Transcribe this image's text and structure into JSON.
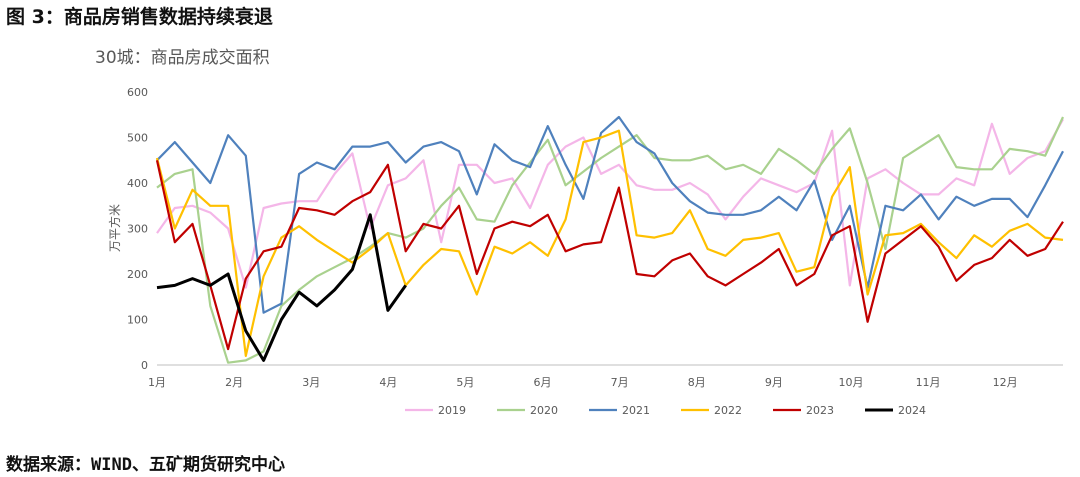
{
  "figure_title": "图 3：商品房销售数据持续衰退",
  "source": "数据来源：WIND、五矿期货研究中心",
  "chart_data": {
    "type": "line",
    "title": "30城：商品房成交面积",
    "ylabel": "万平方米",
    "xlabel": "",
    "ylim": [
      0,
      600
    ],
    "yticks": [
      0,
      100,
      200,
      300,
      400,
      500,
      600
    ],
    "grid": false,
    "legend": "bottom",
    "x_tick_labels": [
      "1月",
      "2月",
      "3月",
      "4月",
      "5月",
      "6月",
      "7月",
      "8月",
      "9月",
      "10月",
      "11月",
      "12月"
    ],
    "weeks_per_year": 52,
    "series": [
      {
        "name": "2019",
        "color": "#f4b6e8",
        "values": [
          290,
          345,
          350,
          335,
          300,
          170,
          345,
          355,
          360,
          360,
          420,
          465,
          300,
          395,
          410,
          450,
          270,
          440,
          440,
          400,
          410,
          345,
          440,
          480,
          500,
          420,
          440,
          395,
          385,
          385,
          400,
          375,
          320,
          370,
          410,
          395,
          380,
          400,
          515,
          175,
          410,
          430,
          400,
          375,
          375,
          410,
          395,
          530,
          420,
          455,
          470,
          540
        ]
      },
      {
        "name": "2020",
        "color": "#a9d18e",
        "values": [
          390,
          420,
          430,
          130,
          5,
          10,
          30,
          130,
          165,
          195,
          215,
          235,
          260,
          290,
          280,
          300,
          350,
          390,
          320,
          315,
          395,
          445,
          495,
          395,
          425,
          455,
          480,
          505,
          455,
          450,
          450,
          460,
          430,
          440,
          420,
          475,
          450,
          420,
          475,
          520,
          400,
          255,
          455,
          480,
          505,
          435,
          430,
          430,
          475,
          470,
          460,
          545
        ]
      },
      {
        "name": "2021",
        "color": "#4f81bd",
        "values": [
          450,
          490,
          445,
          400,
          505,
          460,
          115,
          135,
          420,
          445,
          430,
          480,
          480,
          490,
          445,
          480,
          490,
          470,
          375,
          485,
          450,
          435,
          525,
          440,
          365,
          510,
          545,
          490,
          465,
          400,
          360,
          335,
          330,
          330,
          340,
          370,
          340,
          405,
          275,
          350,
          170,
          350,
          340,
          375,
          320,
          370,
          350,
          365,
          365,
          325,
          395,
          470
        ]
      },
      {
        "name": "2022",
        "color": "#ffc000",
        "values": [
          455,
          300,
          385,
          350,
          350,
          20,
          195,
          280,
          305,
          275,
          250,
          225,
          255,
          290,
          175,
          220,
          255,
          250,
          155,
          260,
          245,
          270,
          240,
          320,
          490,
          500,
          515,
          285,
          280,
          290,
          340,
          255,
          240,
          275,
          280,
          290,
          205,
          215,
          370,
          435,
          155,
          285,
          290,
          310,
          270,
          235,
          285,
          260,
          295,
          310,
          280,
          275
        ]
      },
      {
        "name": "2023",
        "color": "#c00000",
        "values": [
          450,
          270,
          310,
          175,
          35,
          190,
          250,
          260,
          345,
          340,
          330,
          360,
          380,
          440,
          250,
          310,
          300,
          350,
          200,
          300,
          315,
          305,
          330,
          250,
          265,
          270,
          390,
          200,
          195,
          230,
          245,
          195,
          175,
          200,
          225,
          255,
          175,
          200,
          285,
          305,
          95,
          245,
          275,
          305,
          260,
          185,
          220,
          235,
          275,
          240,
          255,
          315
        ]
      },
      {
        "name": "2024",
        "color": "#000000",
        "values": [
          170,
          175,
          190,
          175,
          200,
          75,
          10,
          100,
          160,
          130,
          165,
          210,
          330,
          120,
          175
        ]
      }
    ]
  }
}
